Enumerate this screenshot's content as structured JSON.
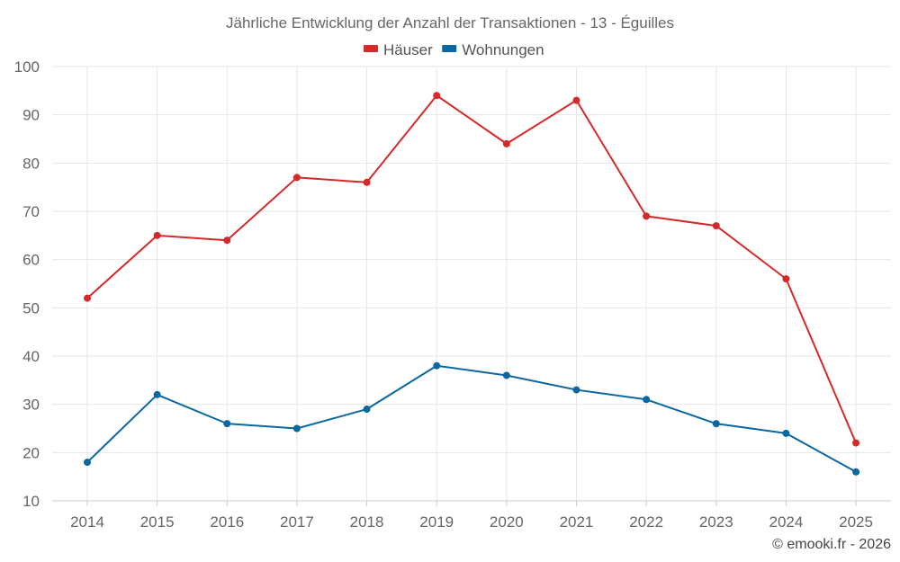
{
  "chart_data": {
    "type": "line",
    "title": "Jährliche Entwicklung der Anzahl der Transaktionen - 13 - Éguilles",
    "x": [
      "2014",
      "2015",
      "2016",
      "2017",
      "2018",
      "2019",
      "2020",
      "2021",
      "2022",
      "2023",
      "2024",
      "2025"
    ],
    "series": [
      {
        "name": "Häuser",
        "color": "#d42a2a",
        "values": [
          52,
          65,
          64,
          77,
          76,
          94,
          84,
          93,
          69,
          67,
          56,
          22
        ]
      },
      {
        "name": "Wohnungen",
        "color": "#0b67a0",
        "values": [
          18,
          32,
          26,
          25,
          29,
          38,
          36,
          33,
          31,
          26,
          24,
          16
        ]
      }
    ],
    "ylim": [
      10,
      100
    ],
    "yticks": [
      10,
      20,
      30,
      40,
      50,
      60,
      70,
      80,
      90,
      100
    ],
    "grid": true,
    "legend_position": "top-center",
    "credit": "© emooki.fr - 2026"
  }
}
